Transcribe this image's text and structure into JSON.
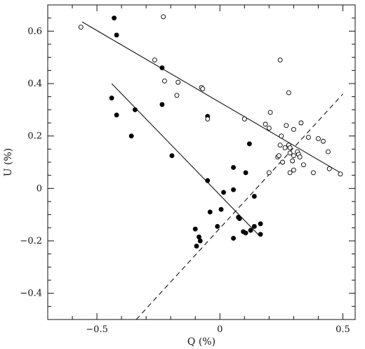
{
  "chart_data": {
    "type": "scatter",
    "xlabel": "Q (%)",
    "ylabel": "U (%)",
    "xlim": [
      -0.7,
      0.55
    ],
    "ylim": [
      -0.5,
      0.7
    ],
    "x_ticks": [
      -0.5,
      0,
      0.5
    ],
    "x_tick_labels": [
      "−0.5",
      "0",
      "0.5"
    ],
    "y_ticks": [
      -0.4,
      -0.2,
      0,
      0.2,
      0.4,
      0.6
    ],
    "y_tick_labels": [
      "−0.4",
      "−0.2",
      "0",
      "0.2",
      "0.4",
      "0.6"
    ],
    "grid": false,
    "series": [
      {
        "marker": "filled-circle",
        "color": "#000000",
        "points": [
          [
            -0.43,
            0.65
          ],
          [
            -0.42,
            0.585
          ],
          [
            -0.44,
            0.345
          ],
          [
            -0.42,
            0.28
          ],
          [
            -0.345,
            0.3
          ],
          [
            -0.36,
            0.2
          ],
          [
            -0.235,
            0.46
          ],
          [
            -0.235,
            0.32
          ],
          [
            -0.195,
            0.125
          ],
          [
            -0.05,
            0.275
          ],
          [
            -0.05,
            0.03
          ],
          [
            -0.04,
            -0.09
          ],
          [
            -0.01,
            -0.145
          ],
          [
            0.005,
            -0.08
          ],
          [
            0.015,
            -0.015
          ],
          [
            -0.1,
            -0.155
          ],
          [
            -0.085,
            -0.185
          ],
          [
            -0.08,
            -0.2
          ],
          [
            -0.095,
            -0.22
          ],
          [
            0.055,
            0.08
          ],
          [
            0.055,
            -0.005
          ],
          [
            0.055,
            -0.19
          ],
          [
            0.075,
            -0.11
          ],
          [
            0.08,
            -0.115
          ],
          [
            0.095,
            -0.165
          ],
          [
            0.105,
            -0.17
          ],
          [
            0.105,
            0.06
          ],
          [
            0.125,
            -0.16
          ],
          [
            0.12,
            0.17
          ],
          [
            0.14,
            -0.03
          ],
          [
            0.14,
            -0.145
          ],
          [
            0.165,
            -0.135
          ],
          [
            0.165,
            -0.175
          ]
        ]
      },
      {
        "marker": "open-circle",
        "color": "#000000",
        "points": [
          [
            -0.565,
            0.615
          ],
          [
            -0.23,
            0.655
          ],
          [
            -0.265,
            0.49
          ],
          [
            -0.225,
            0.41
          ],
          [
            -0.17,
            0.405
          ],
          [
            -0.175,
            0.355
          ],
          [
            -0.075,
            0.385
          ],
          [
            -0.07,
            0.38
          ],
          [
            -0.05,
            0.265
          ],
          [
            0.1,
            0.265
          ],
          [
            0.185,
            0.245
          ],
          [
            0.2,
            0.23
          ],
          [
            0.205,
            0.29
          ],
          [
            0.2,
            0.06
          ],
          [
            0.235,
            0.12
          ],
          [
            0.24,
            0.125
          ],
          [
            0.245,
            0.49
          ],
          [
            0.245,
            0.165
          ],
          [
            0.255,
            0.1
          ],
          [
            0.265,
            0.155
          ],
          [
            0.28,
            0.365
          ],
          [
            0.27,
            0.24
          ],
          [
            0.28,
            0.165
          ],
          [
            0.285,
            0.135
          ],
          [
            0.285,
            0.155
          ],
          [
            0.285,
            0.06
          ],
          [
            0.295,
            0.105
          ],
          [
            0.3,
            0.225
          ],
          [
            0.3,
            0.07
          ],
          [
            0.315,
            0.14
          ],
          [
            0.32,
            0.13
          ],
          [
            0.325,
            0.12
          ],
          [
            0.33,
            0.25
          ],
          [
            0.34,
            0.09
          ],
          [
            0.36,
            0.195
          ],
          [
            0.38,
            0.06
          ],
          [
            0.4,
            0.19
          ],
          [
            0.42,
            0.18
          ],
          [
            0.44,
            0.14
          ],
          [
            0.445,
            0.075
          ],
          [
            0.49,
            0.055
          ],
          [
            0.25,
            0.2
          ],
          [
            0.3,
            0.125
          ]
        ]
      }
    ],
    "lines": [
      {
        "style": "solid",
        "x": [
          -0.56,
          0.49
        ],
        "y": [
          0.635,
          0.06
        ]
      },
      {
        "style": "solid",
        "x": [
          -0.44,
          0.16
        ],
        "y": [
          0.4,
          -0.18
        ]
      },
      {
        "style": "dashed",
        "x": [
          -0.34,
          0.5
        ],
        "y": [
          -0.5,
          0.36
        ]
      }
    ]
  }
}
